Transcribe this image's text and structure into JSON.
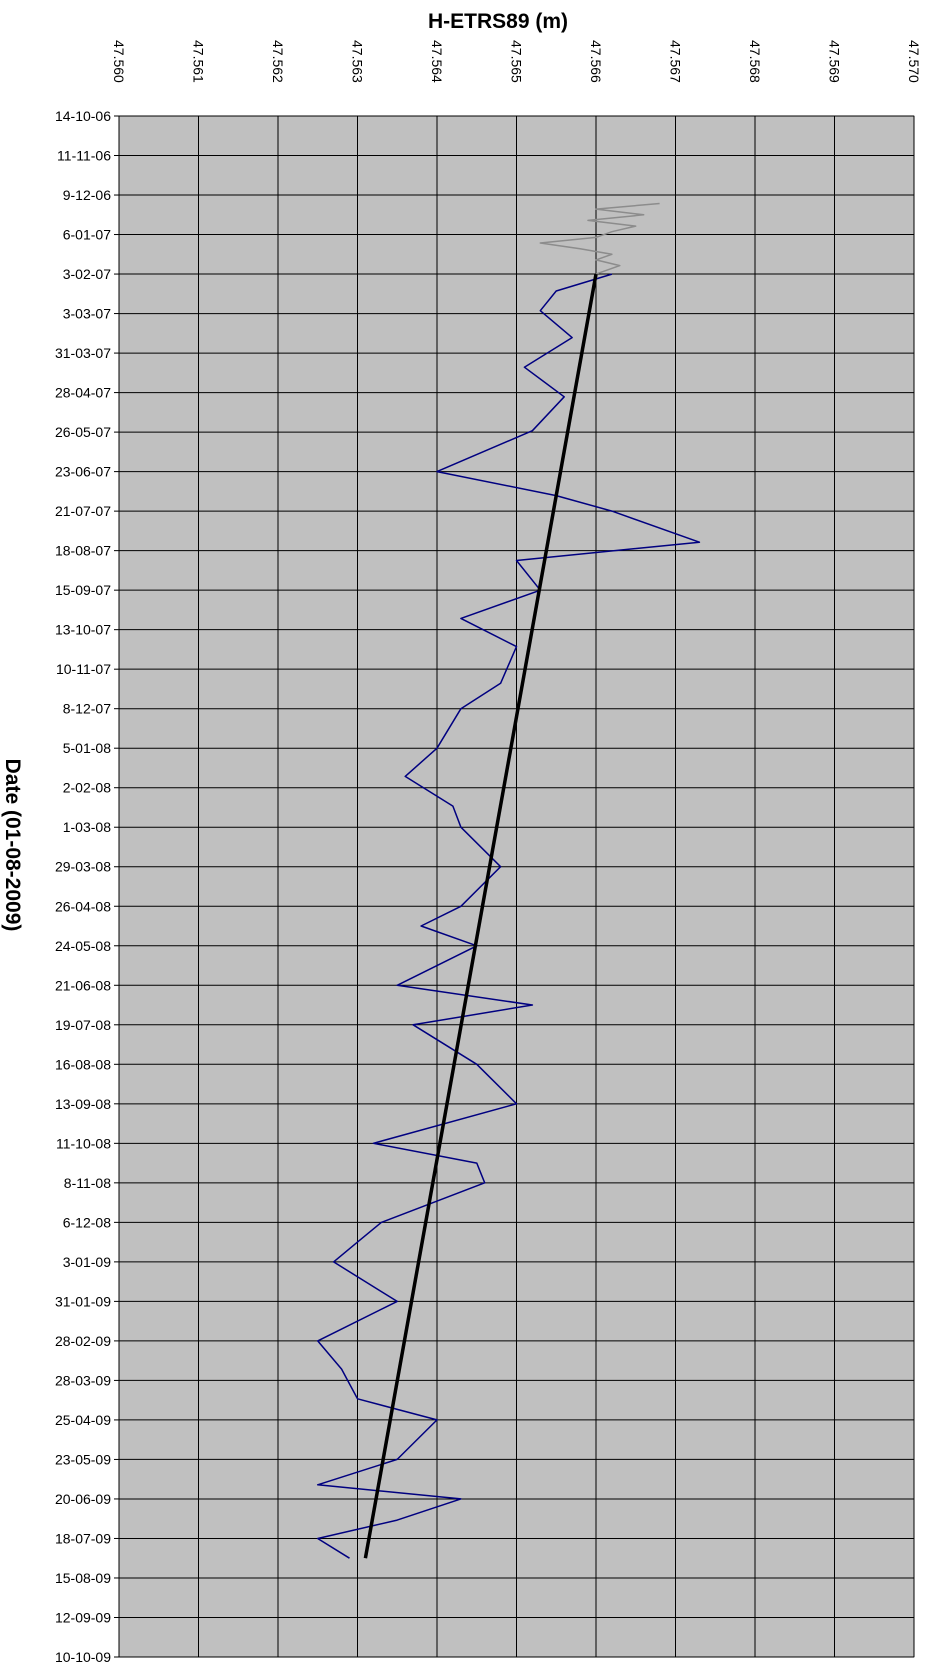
{
  "chart_data": {
    "type": "line",
    "title": "H-ETRS89 (m)",
    "ylabel": "Date (01-08-2009)",
    "x_axis": {
      "position": "top",
      "range": [
        47.56,
        47.57
      ],
      "ticks": [
        "47.560",
        "47.561",
        "47.562",
        "47.563",
        "47.564",
        "47.565",
        "47.566",
        "47.567",
        "47.568",
        "47.569",
        "47.570"
      ],
      "grid": true
    },
    "y_axis": {
      "range": [
        "2006-10-14",
        "2009-10-10"
      ],
      "ticks": [
        "14-10-06",
        "11-11-06",
        "9-12-06",
        "6-01-07",
        "3-02-07",
        "3-03-07",
        "31-03-07",
        "28-04-07",
        "26-05-07",
        "23-06-07",
        "21-07-07",
        "18-08-07",
        "15-09-07",
        "13-10-07",
        "10-11-07",
        "8-12-07",
        "5-01-08",
        "2-02-08",
        "1-03-08",
        "29-03-08",
        "26-04-08",
        "24-05-08",
        "21-06-08",
        "19-07-08",
        "16-08-08",
        "13-09-08",
        "11-10-08",
        "8-11-08",
        "6-12-08",
        "3-01-09",
        "31-01-09",
        "28-02-09",
        "28-03-09",
        "25-04-09",
        "23-05-09",
        "20-06-09",
        "18-07-09",
        "15-08-09",
        "12-09-09",
        "10-10-09"
      ],
      "grid": true
    },
    "plot_background": "#c0c0c0",
    "series": [
      {
        "style": "gray noisy line",
        "color": "#8c8c8c",
        "x_range_dates": [
          "2006-12-15",
          "2007-02-03"
        ],
        "points": [
          [
            "2006-12-15",
            47.5668
          ],
          [
            "2006-12-19",
            47.566
          ],
          [
            "2006-12-23",
            47.5666
          ],
          [
            "2006-12-27",
            47.5659
          ],
          [
            "2006-12-31",
            47.5665
          ],
          [
            "2007-01-04",
            47.5662
          ],
          [
            "2007-01-08",
            47.566
          ],
          [
            "2007-01-12",
            47.5653
          ],
          [
            "2007-01-16",
            47.5658
          ],
          [
            "2007-01-20",
            47.5662
          ],
          [
            "2007-01-24",
            47.566
          ],
          [
            "2007-01-28",
            47.5663
          ],
          [
            "2007-02-03",
            47.566
          ]
        ]
      },
      {
        "style": "navy noisy line",
        "color": "#000080",
        "x_range_dates": [
          "2007-02-03",
          "2009-08-01"
        ],
        "points": [
          [
            "2007-02-03",
            47.5662
          ],
          [
            "2007-02-15",
            47.5655
          ],
          [
            "2007-03-01",
            47.5653
          ],
          [
            "2007-03-20",
            47.5657
          ],
          [
            "2007-04-10",
            47.5651
          ],
          [
            "2007-05-01",
            47.5656
          ],
          [
            "2007-05-25",
            47.5652
          ],
          [
            "2007-06-23",
            47.564
          ],
          [
            "2007-07-10",
            47.5655
          ],
          [
            "2007-07-21",
            47.5662
          ],
          [
            "2007-08-12",
            47.5673
          ],
          [
            "2007-08-25",
            47.565
          ],
          [
            "2007-09-15",
            47.5653
          ],
          [
            "2007-10-05",
            47.5643
          ],
          [
            "2007-10-25",
            47.565
          ],
          [
            "2007-11-20",
            47.5648
          ],
          [
            "2007-12-08",
            47.5643
          ],
          [
            "2008-01-05",
            47.564
          ],
          [
            "2008-01-25",
            47.5636
          ],
          [
            "2008-02-15",
            47.5642
          ],
          [
            "2008-03-01",
            47.5643
          ],
          [
            "2008-03-29",
            47.5648
          ],
          [
            "2008-04-26",
            47.5643
          ],
          [
            "2008-05-10",
            47.5638
          ],
          [
            "2008-05-24",
            47.5645
          ],
          [
            "2008-06-21",
            47.5635
          ],
          [
            "2008-07-05",
            47.5652
          ],
          [
            "2008-07-19",
            47.5637
          ],
          [
            "2008-08-16",
            47.5645
          ],
          [
            "2008-09-13",
            47.565
          ],
          [
            "2008-10-11",
            47.5632
          ],
          [
            "2008-10-25",
            47.5645
          ],
          [
            "2008-11-08",
            47.5646
          ],
          [
            "2008-12-06",
            47.5633
          ],
          [
            "2008-12-20",
            47.563
          ],
          [
            "2009-01-03",
            47.5627
          ],
          [
            "2009-01-31",
            47.5635
          ],
          [
            "2009-02-28",
            47.5625
          ],
          [
            "2009-03-20",
            47.5628
          ],
          [
            "2009-04-10",
            47.563
          ],
          [
            "2009-04-25",
            47.564
          ],
          [
            "2009-05-23",
            47.5635
          ],
          [
            "2009-06-10",
            47.5625
          ],
          [
            "2009-06-20",
            47.5643
          ],
          [
            "2009-07-05",
            47.5635
          ],
          [
            "2009-07-18",
            47.5625
          ],
          [
            "2009-08-01",
            47.5629
          ]
        ]
      },
      {
        "style": "black trend line",
        "color": "#000000",
        "points": [
          [
            "2007-02-03",
            47.566
          ],
          [
            "2009-08-01",
            47.5631
          ]
        ]
      }
    ]
  }
}
